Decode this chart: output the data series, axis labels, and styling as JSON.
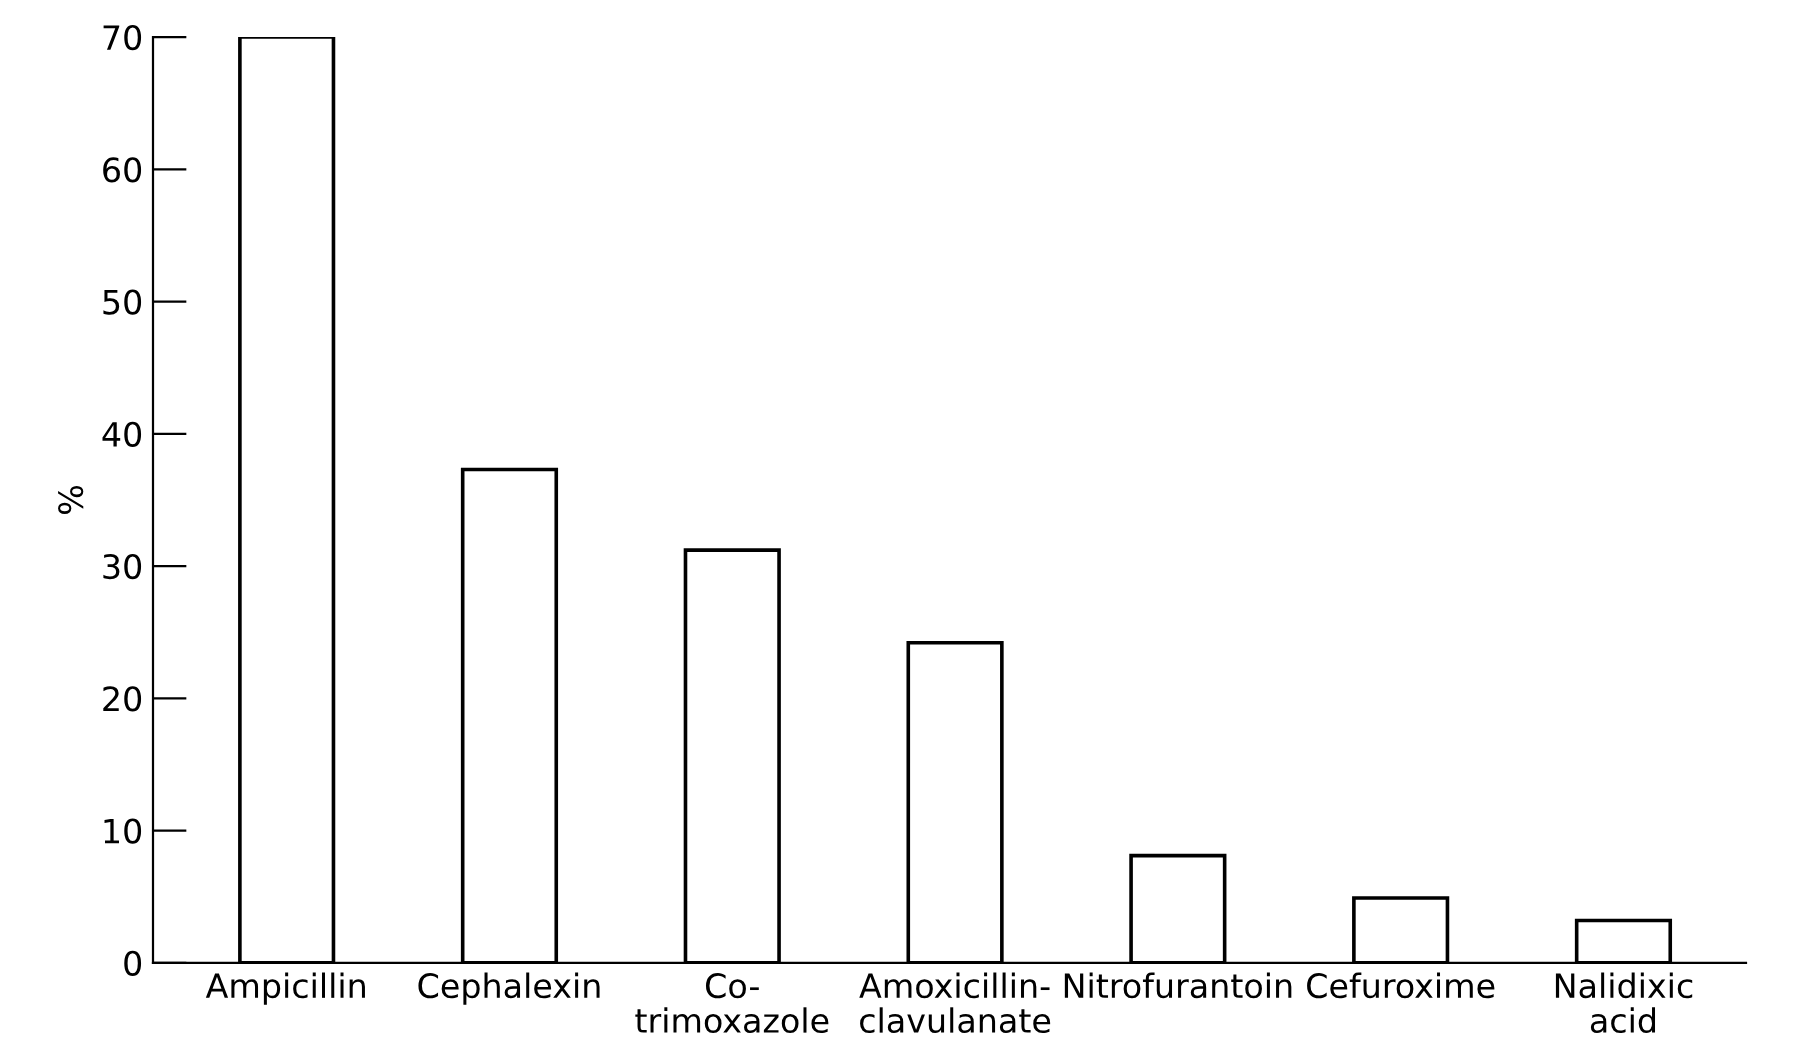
{
  "chart_data": {
    "type": "bar",
    "ylabel": "%",
    "categories": [
      "Ampicillin",
      "Cephalexin",
      "Co-\ntrimoxazole",
      "Amoxicillin-\nclavulanate",
      "Nitrofurantoin",
      "Cefuroxime",
      "Nalidixic\nacid"
    ],
    "values": [
      70,
      37.3,
      31.2,
      24.2,
      8.1,
      4.9,
      3.2
    ],
    "color": "#ffffff",
    "ylim": [
      0,
      70
    ],
    "yticks": [
      0,
      10,
      20,
      30,
      40,
      50,
      60,
      70
    ],
    "grid": false
  }
}
